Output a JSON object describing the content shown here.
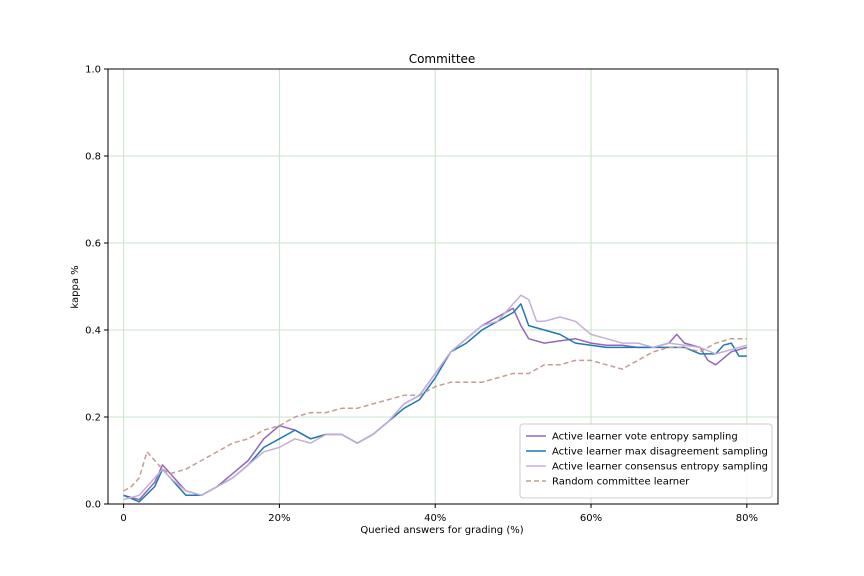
{
  "chart_data": {
    "type": "line",
    "title": "Committee",
    "xlabel": "Queried answers for grading (%)",
    "ylabel": "kappa %",
    "xlim": [
      -2,
      84
    ],
    "ylim": [
      0,
      1.0
    ],
    "x_ticks": [
      {
        "value": 0,
        "label": "0"
      },
      {
        "value": 20,
        "label": "20%"
      },
      {
        "value": 40,
        "label": "40%"
      },
      {
        "value": 60,
        "label": "60%"
      },
      {
        "value": 80,
        "label": "80%"
      }
    ],
    "y_ticks": [
      {
        "value": 0.0,
        "label": "0.0"
      },
      {
        "value": 0.2,
        "label": "0.2"
      },
      {
        "value": 0.4,
        "label": "0.4"
      },
      {
        "value": 0.6,
        "label": "0.6"
      },
      {
        "value": 0.8,
        "label": "0.8"
      },
      {
        "value": 1.0,
        "label": "1.0"
      }
    ],
    "grid": true,
    "grid_color": "#c8e3c8",
    "legend_position": "lower-right",
    "series": [
      {
        "name": "Active learner vote entropy sampling",
        "color": "#9467bd",
        "style": "solid",
        "points": [
          [
            0,
            0.02
          ],
          [
            2,
            0.01
          ],
          [
            4,
            0.05
          ],
          [
            5,
            0.09
          ],
          [
            6,
            0.07
          ],
          [
            8,
            0.03
          ],
          [
            10,
            0.02
          ],
          [
            12,
            0.04
          ],
          [
            14,
            0.07
          ],
          [
            16,
            0.1
          ],
          [
            18,
            0.15
          ],
          [
            20,
            0.18
          ],
          [
            22,
            0.17
          ],
          [
            24,
            0.15
          ],
          [
            26,
            0.16
          ],
          [
            28,
            0.16
          ],
          [
            30,
            0.14
          ],
          [
            32,
            0.16
          ],
          [
            34,
            0.19
          ],
          [
            36,
            0.23
          ],
          [
            38,
            0.25
          ],
          [
            40,
            0.3
          ],
          [
            42,
            0.35
          ],
          [
            44,
            0.38
          ],
          [
            46,
            0.41
          ],
          [
            48,
            0.43
          ],
          [
            50,
            0.45
          ],
          [
            51,
            0.41
          ],
          [
            52,
            0.38
          ],
          [
            54,
            0.37
          ],
          [
            56,
            0.375
          ],
          [
            58,
            0.38
          ],
          [
            60,
            0.37
          ],
          [
            62,
            0.365
          ],
          [
            64,
            0.365
          ],
          [
            66,
            0.36
          ],
          [
            68,
            0.36
          ],
          [
            70,
            0.37
          ],
          [
            71,
            0.39
          ],
          [
            72,
            0.37
          ],
          [
            74,
            0.36
          ],
          [
            75,
            0.33
          ],
          [
            76,
            0.32
          ],
          [
            78,
            0.35
          ],
          [
            80,
            0.36
          ]
        ]
      },
      {
        "name": "Active learner max disagreement sampling",
        "color": "#1f77b4",
        "style": "solid",
        "points": [
          [
            0,
            0.02
          ],
          [
            2,
            0.005
          ],
          [
            4,
            0.04
          ],
          [
            5,
            0.08
          ],
          [
            6,
            0.06
          ],
          [
            8,
            0.02
          ],
          [
            10,
            0.02
          ],
          [
            12,
            0.04
          ],
          [
            14,
            0.06
          ],
          [
            16,
            0.09
          ],
          [
            18,
            0.13
          ],
          [
            20,
            0.15
          ],
          [
            22,
            0.17
          ],
          [
            24,
            0.15
          ],
          [
            26,
            0.16
          ],
          [
            28,
            0.16
          ],
          [
            30,
            0.14
          ],
          [
            32,
            0.16
          ],
          [
            34,
            0.19
          ],
          [
            36,
            0.22
          ],
          [
            38,
            0.24
          ],
          [
            40,
            0.29
          ],
          [
            42,
            0.35
          ],
          [
            44,
            0.37
          ],
          [
            46,
            0.4
          ],
          [
            48,
            0.42
          ],
          [
            50,
            0.44
          ],
          [
            51,
            0.46
          ],
          [
            52,
            0.41
          ],
          [
            54,
            0.4
          ],
          [
            56,
            0.39
          ],
          [
            58,
            0.37
          ],
          [
            60,
            0.365
          ],
          [
            62,
            0.36
          ],
          [
            64,
            0.36
          ],
          [
            66,
            0.36
          ],
          [
            68,
            0.36
          ],
          [
            70,
            0.36
          ],
          [
            72,
            0.36
          ],
          [
            74,
            0.345
          ],
          [
            76,
            0.345
          ],
          [
            77,
            0.365
          ],
          [
            78,
            0.37
          ],
          [
            79,
            0.34
          ],
          [
            80,
            0.34
          ]
        ]
      },
      {
        "name": "Active learner consensus entropy sampling",
        "color": "#c5b0d5",
        "style": "solid",
        "points": [
          [
            0,
            0.01
          ],
          [
            2,
            0.02
          ],
          [
            4,
            0.06
          ],
          [
            5,
            0.08
          ],
          [
            6,
            0.06
          ],
          [
            8,
            0.03
          ],
          [
            10,
            0.02
          ],
          [
            12,
            0.04
          ],
          [
            14,
            0.06
          ],
          [
            16,
            0.09
          ],
          [
            18,
            0.12
          ],
          [
            20,
            0.13
          ],
          [
            22,
            0.15
          ],
          [
            24,
            0.14
          ],
          [
            26,
            0.16
          ],
          [
            28,
            0.16
          ],
          [
            30,
            0.14
          ],
          [
            32,
            0.16
          ],
          [
            34,
            0.19
          ],
          [
            36,
            0.23
          ],
          [
            38,
            0.25
          ],
          [
            40,
            0.3
          ],
          [
            42,
            0.35
          ],
          [
            44,
            0.38
          ],
          [
            46,
            0.41
          ],
          [
            48,
            0.42
          ],
          [
            50,
            0.46
          ],
          [
            51,
            0.48
          ],
          [
            52,
            0.47
          ],
          [
            53,
            0.42
          ],
          [
            54,
            0.42
          ],
          [
            56,
            0.43
          ],
          [
            58,
            0.42
          ],
          [
            60,
            0.39
          ],
          [
            62,
            0.38
          ],
          [
            64,
            0.37
          ],
          [
            66,
            0.37
          ],
          [
            68,
            0.36
          ],
          [
            70,
            0.37
          ],
          [
            72,
            0.365
          ],
          [
            74,
            0.36
          ],
          [
            76,
            0.345
          ],
          [
            78,
            0.355
          ],
          [
            80,
            0.365
          ]
        ]
      },
      {
        "name": "Random committee learner",
        "color": "#c49c94",
        "style": "dashed",
        "points": [
          [
            0,
            0.03
          ],
          [
            1,
            0.04
          ],
          [
            2,
            0.06
          ],
          [
            3,
            0.12
          ],
          [
            4,
            0.1
          ],
          [
            5,
            0.08
          ],
          [
            6,
            0.07
          ],
          [
            8,
            0.08
          ],
          [
            10,
            0.1
          ],
          [
            12,
            0.12
          ],
          [
            14,
            0.14
          ],
          [
            16,
            0.15
          ],
          [
            18,
            0.17
          ],
          [
            20,
            0.18
          ],
          [
            22,
            0.2
          ],
          [
            24,
            0.21
          ],
          [
            26,
            0.21
          ],
          [
            28,
            0.22
          ],
          [
            30,
            0.22
          ],
          [
            32,
            0.23
          ],
          [
            34,
            0.24
          ],
          [
            36,
            0.25
          ],
          [
            38,
            0.25
          ],
          [
            40,
            0.27
          ],
          [
            42,
            0.28
          ],
          [
            44,
            0.28
          ],
          [
            46,
            0.28
          ],
          [
            48,
            0.29
          ],
          [
            50,
            0.3
          ],
          [
            52,
            0.3
          ],
          [
            54,
            0.32
          ],
          [
            56,
            0.32
          ],
          [
            58,
            0.33
          ],
          [
            60,
            0.33
          ],
          [
            62,
            0.32
          ],
          [
            64,
            0.31
          ],
          [
            66,
            0.33
          ],
          [
            68,
            0.35
          ],
          [
            70,
            0.36
          ],
          [
            72,
            0.36
          ],
          [
            74,
            0.35
          ],
          [
            76,
            0.37
          ],
          [
            78,
            0.38
          ],
          [
            80,
            0.38
          ]
        ]
      }
    ]
  }
}
